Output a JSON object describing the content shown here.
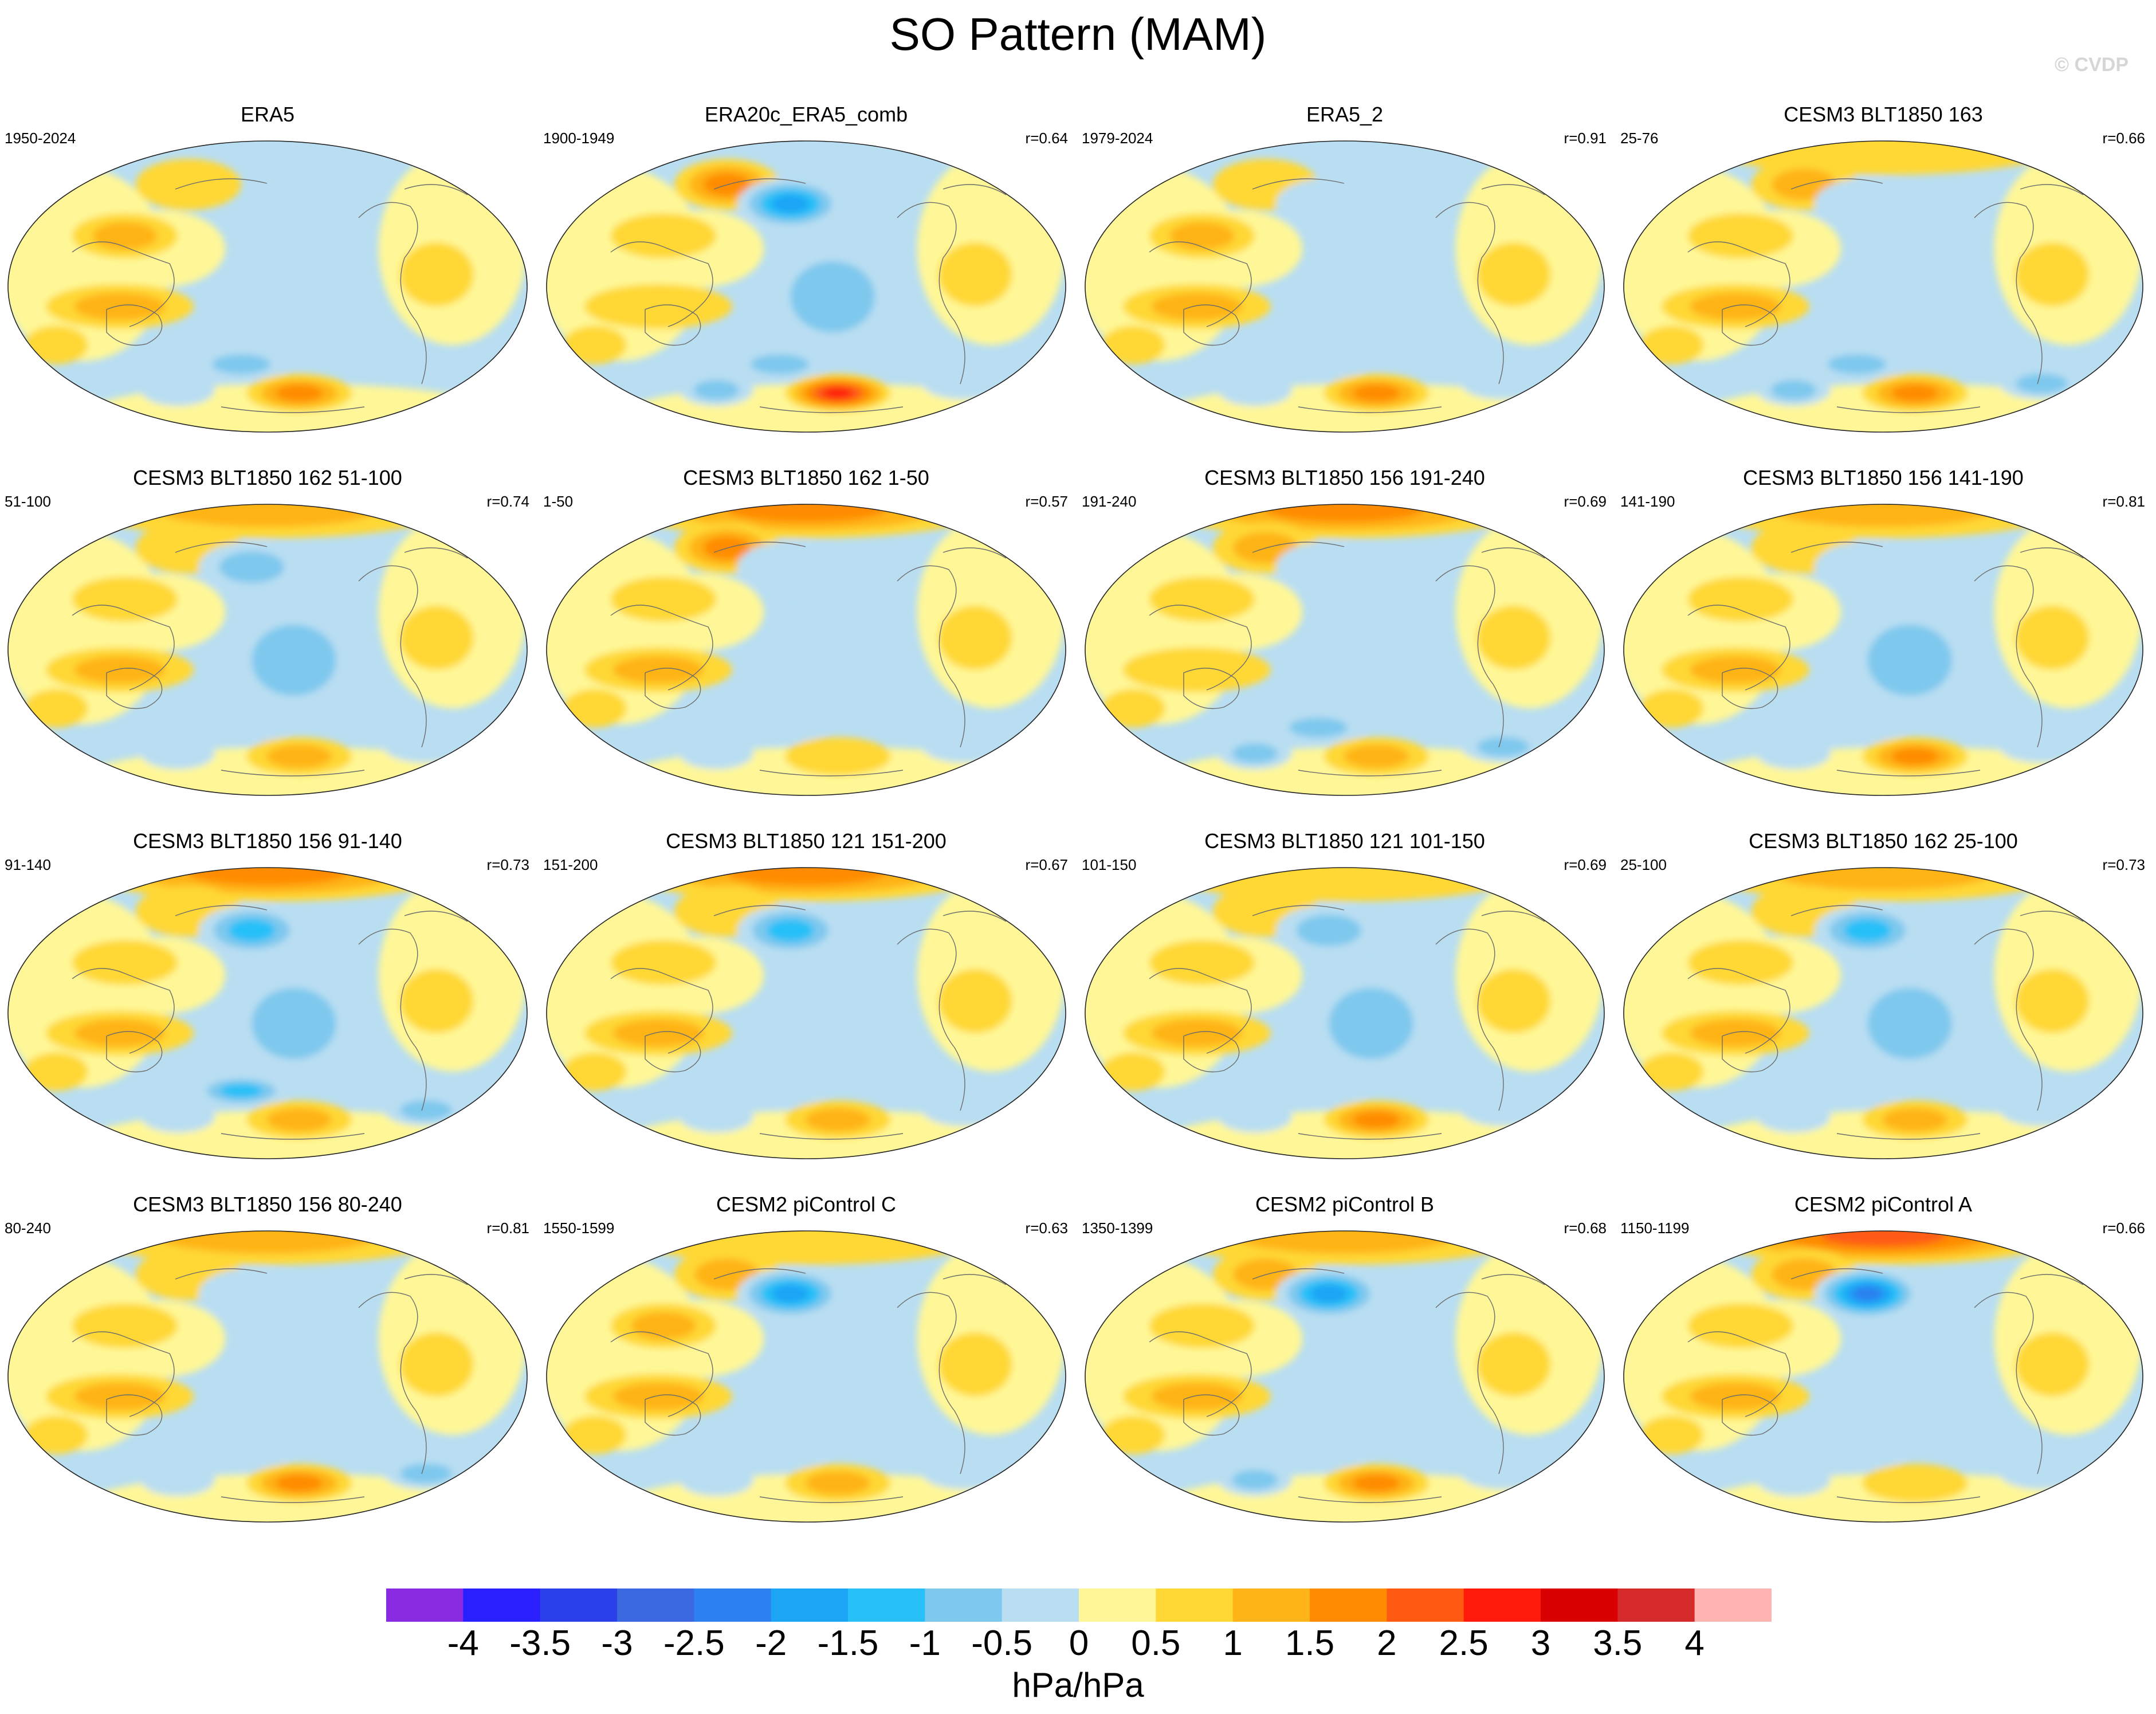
{
  "figure": {
    "title": "SO Pattern (MAM)",
    "credit": "© CVDP",
    "units": "hPa/hPa"
  },
  "colorbar": {
    "ticks": [
      "-4",
      "-3.5",
      "-3",
      "-2.5",
      "-2",
      "-1.5",
      "-1",
      "-0.5",
      "0",
      "0.5",
      "1",
      "1.5",
      "2",
      "2.5",
      "3",
      "3.5",
      "4"
    ],
    "colors": [
      "#8a2be2",
      "#2a1fff",
      "#2a40e8",
      "#3a68e0",
      "#2c80f0",
      "#1ca4f5",
      "#28c0f8",
      "#7ec8ee",
      "#b9def2",
      "#fff797",
      "#ffd836",
      "#ffb418",
      "#ff8c00",
      "#ff5a12",
      "#ff1a0a",
      "#d80000",
      "#d42a2a",
      "#ffb4b4"
    ]
  },
  "panels": [
    {
      "title": "ERA5",
      "years": "1950-2024",
      "corr": "",
      "pattern": [
        0,
        1,
        0,
        2,
        2,
        0,
        1,
        -2,
        3,
        0,
        1,
        -1
      ]
    },
    {
      "title": "ERA20c_ERA5_comb",
      "years": "1900-1949",
      "corr": "r=0.64",
      "pattern": [
        0,
        3,
        -4,
        1,
        1,
        -2,
        1,
        -2,
        5,
        -1,
        1,
        -2
      ]
    },
    {
      "title": "ERA5_2",
      "years": "1979-2024",
      "corr": "r=0.91",
      "pattern": [
        0,
        1,
        -1,
        2,
        2,
        0,
        1,
        -1,
        3,
        -1,
        1,
        -1
      ]
    },
    {
      "title": "CESM3 BLT1850 163",
      "years": "25-76",
      "corr": "r=0.66",
      "pattern": [
        1,
        2,
        -1,
        1,
        2,
        0,
        1,
        -2,
        3,
        -2,
        1,
        -2
      ]
    },
    {
      "title": "CESM3 BLT1850 162 51-100",
      "years": "51-100",
      "corr": "r=0.74",
      "pattern": [
        2,
        1,
        -2,
        1,
        2,
        -2,
        1,
        -1,
        2,
        -1,
        1,
        -1
      ]
    },
    {
      "title": "CESM3 BLT1850 162 1-50",
      "years": "1-50",
      "corr": "r=0.57",
      "pattern": [
        3,
        3,
        -1,
        1,
        2,
        -1,
        1,
        -1,
        1,
        -1,
        1,
        -1
      ]
    },
    {
      "title": "CESM3 BLT1850 156 191-240",
      "years": "191-240",
      "corr": "r=0.69",
      "pattern": [
        3,
        2,
        -1,
        1,
        1,
        -1,
        1,
        -2,
        2,
        -2,
        1,
        -2
      ]
    },
    {
      "title": "CESM3 BLT1850 156 141-190",
      "years": "141-190",
      "corr": "r=0.81",
      "pattern": [
        2,
        1,
        -1,
        1,
        2,
        -2,
        1,
        -1,
        3,
        -1,
        1,
        -1
      ]
    },
    {
      "title": "CESM3 BLT1850 156 91-140",
      "years": "91-140",
      "corr": "r=0.73",
      "pattern": [
        3,
        1,
        -3,
        1,
        2,
        -2,
        1,
        -3,
        2,
        -2,
        1,
        -1
      ]
    },
    {
      "title": "CESM3 BLT1850 121 151-200",
      "years": "151-200",
      "corr": "r=0.67",
      "pattern": [
        3,
        1,
        -3,
        1,
        2,
        -1,
        1,
        -1,
        2,
        -1,
        1,
        -1
      ]
    },
    {
      "title": "CESM3 BLT1850 121 101-150",
      "years": "101-150",
      "corr": "r=0.69",
      "pattern": [
        1,
        1,
        -2,
        1,
        2,
        -2,
        1,
        -1,
        3,
        -1,
        1,
        -1
      ]
    },
    {
      "title": "CESM3 BLT1850 162 25-100",
      "years": "25-100",
      "corr": "r=0.73",
      "pattern": [
        2,
        1,
        -3,
        1,
        2,
        -2,
        1,
        -1,
        2,
        -1,
        1,
        -1
      ]
    },
    {
      "title": "CESM3 BLT1850 156 80-240",
      "years": "80-240",
      "corr": "r=0.81",
      "pattern": [
        2,
        1,
        -1,
        1,
        2,
        -1,
        1,
        -1,
        3,
        -2,
        1,
        -1
      ]
    },
    {
      "title": "CESM2 piControl C",
      "years": "1550-1599",
      "corr": "r=0.63",
      "pattern": [
        1,
        2,
        -4,
        2,
        2,
        -1,
        1,
        -1,
        2,
        -1,
        1,
        -1
      ]
    },
    {
      "title": "CESM2 piControl B",
      "years": "1350-1399",
      "corr": "r=0.68",
      "pattern": [
        2,
        2,
        -4,
        1,
        2,
        -1,
        1,
        -1,
        3,
        -1,
        1,
        -2
      ]
    },
    {
      "title": "CESM2 piControl A",
      "years": "1150-1199",
      "corr": "r=0.66",
      "pattern": [
        4,
        2,
        -5,
        1,
        2,
        -1,
        1,
        -1,
        1,
        -1,
        1,
        -1
      ]
    }
  ]
}
